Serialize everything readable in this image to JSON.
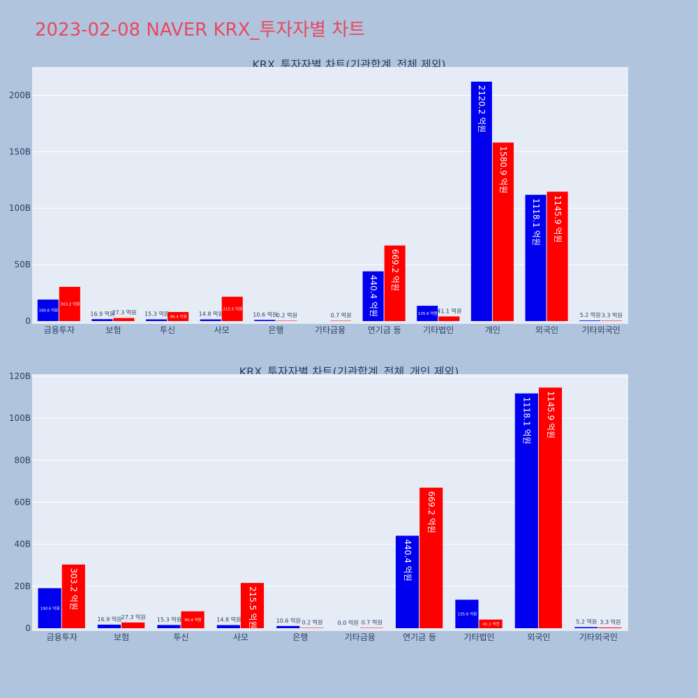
{
  "page_title": "2023-02-08 NAVER KRX_투자자별 차트",
  "colors": {
    "background": "#b0c4de",
    "plot_bg": "#e5ecf6",
    "grid": "#ffffff",
    "title": "#e8485e",
    "text": "#2a3f5f",
    "series_a": "#0000ee",
    "series_b": "#ff0000"
  },
  "chart_data": [
    {
      "type": "bar",
      "title": "KRX_투자자별 차트(기관합계_전체 제외)",
      "categories": [
        "금융투자",
        "보험",
        "투신",
        "사모",
        "은행",
        "기타금융",
        "연기금 등",
        "기타법인",
        "개인",
        "외국인",
        "기타외국인"
      ],
      "y_ticks": [
        "0",
        "50B",
        "100B",
        "150B",
        "200B"
      ],
      "ylim": [
        0,
        225
      ],
      "series": [
        {
          "color": "#0000ee",
          "values": [
            19.06,
            1.69,
            1.53,
            1.48,
            1.06,
            0,
            44.04,
            13.56,
            212.02,
            111.81,
            0.52
          ],
          "labels": [
            "190.6 억원",
            "16.9 억원",
            "15.3 억원",
            "14.8 억원",
            "10.6 억원",
            "",
            "440.4 억원",
            "135.6 억원",
            "2120.2 억원",
            "1118.1 억원",
            "5.2 억원"
          ]
        },
        {
          "color": "#ff0000",
          "values": [
            30.32,
            2.73,
            8.04,
            21.55,
            0.02,
            0.07,
            66.92,
            4.11,
            158.09,
            114.59,
            0.33
          ],
          "labels": [
            "303.2 억원",
            "27.3 억원",
            "80.4 억원",
            "215.5 억원",
            "0.2 억원",
            "0.7 억원",
            "669.2 억원",
            "41.1 억원",
            "1580.9 억원",
            "1145.9 억원",
            "3.3 억원"
          ]
        }
      ]
    },
    {
      "type": "bar",
      "title": "KRX_투자자별 차트(기관합계_전체_개인 제외)",
      "categories": [
        "금융투자",
        "보험",
        "투신",
        "사모",
        "은행",
        "기타금융",
        "연기금 등",
        "기타법인",
        "외국인",
        "기타외국인"
      ],
      "y_ticks": [
        "0",
        "20B",
        "40B",
        "60B",
        "80B",
        "100B",
        "120B"
      ],
      "ylim": [
        0,
        121
      ],
      "series": [
        {
          "color": "#0000ee",
          "values": [
            19.06,
            1.69,
            1.53,
            1.48,
            1.06,
            0,
            44.04,
            13.56,
            111.81,
            0.52
          ],
          "labels": [
            "190.6 억원",
            "16.9 억원",
            "15.3 억원",
            "14.8 억원",
            "10.6 억원",
            "0.0 억원",
            "440.4 억원",
            "135.6 억원",
            "1118.1 억원",
            "5.2 억원"
          ]
        },
        {
          "color": "#ff0000",
          "values": [
            30.32,
            2.73,
            8.04,
            21.55,
            0.02,
            0.07,
            66.92,
            4.11,
            114.59,
            0.33
          ],
          "labels": [
            "303.2 억원",
            "27.3 억원",
            "80.4 억원",
            "215.5 억원",
            "0.2 억원",
            "0.7 억원",
            "669.2 억원",
            "41.1 억원",
            "1145.9 억원",
            "3.3 억원"
          ]
        }
      ]
    }
  ]
}
